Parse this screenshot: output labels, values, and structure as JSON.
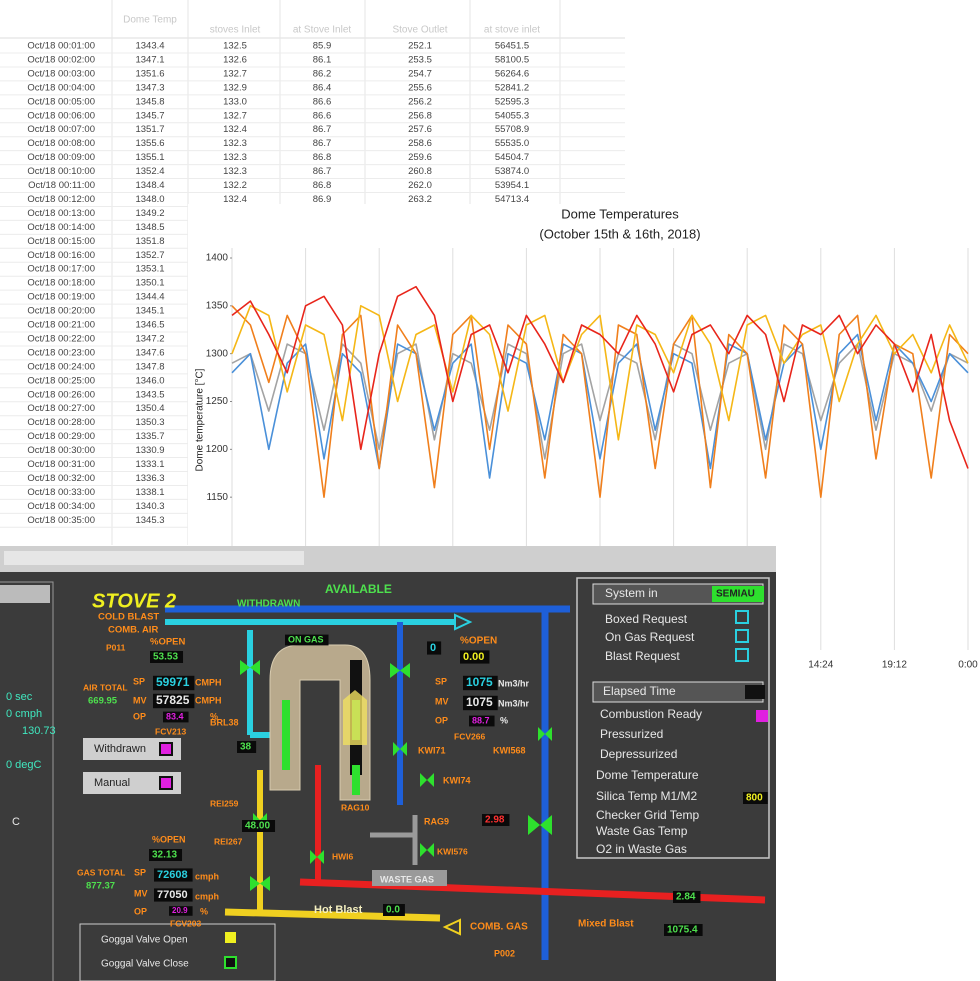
{
  "spreadsheet": {
    "headers": [
      "Dome Temp",
      "stoves Inlet",
      "at Stove Inlet",
      "Stove Outlet",
      "at stove inlet"
    ],
    "rows": [
      [
        "Oct/18 00:01:00",
        "1343.4",
        "132.5",
        "85.9",
        "252.1",
        "56451.5"
      ],
      [
        "Oct/18 00:02:00",
        "1347.1",
        "132.6",
        "86.1",
        "253.5",
        "58100.5"
      ],
      [
        "Oct/18 00:03:00",
        "1351.6",
        "132.7",
        "86.2",
        "254.7",
        "56264.6"
      ],
      [
        "Oct/18 00:04:00",
        "1347.3",
        "132.9",
        "86.4",
        "255.6",
        "52841.2"
      ],
      [
        "Oct/18 00:05:00",
        "1345.8",
        "133.0",
        "86.6",
        "256.2",
        "52595.3"
      ],
      [
        "Oct/18 00:06:00",
        "1345.7",
        "132.7",
        "86.6",
        "256.8",
        "54055.3"
      ],
      [
        "Oct/18 00:07:00",
        "1351.7",
        "132.4",
        "86.7",
        "257.6",
        "55708.9"
      ],
      [
        "Oct/18 00:08:00",
        "1355.6",
        "132.3",
        "86.7",
        "258.6",
        "55535.0"
      ],
      [
        "Oct/18 00:09:00",
        "1355.1",
        "132.3",
        "86.8",
        "259.6",
        "54504.7"
      ],
      [
        "Oct/18 00:10:00",
        "1352.4",
        "132.3",
        "86.7",
        "260.8",
        "53874.0"
      ],
      [
        "Oct/18 00:11:00",
        "1348.4",
        "132.2",
        "86.8",
        "262.0",
        "53954.1"
      ],
      [
        "Oct/18 00:12:00",
        "1348.0",
        "132.4",
        "86.9",
        "263.2",
        "54713.4"
      ],
      [
        "Oct/18 00:13:00",
        "1349.2"
      ],
      [
        "Oct/18 00:14:00",
        "1348.5"
      ],
      [
        "Oct/18 00:15:00",
        "1351.8"
      ],
      [
        "Oct/18 00:16:00",
        "1352.7"
      ],
      [
        "Oct/18 00:17:00",
        "1353.1"
      ],
      [
        "Oct/18 00:18:00",
        "1350.1"
      ],
      [
        "Oct/18 00:19:00",
        "1344.4"
      ],
      [
        "Oct/18 00:20:00",
        "1345.1"
      ],
      [
        "Oct/18 00:21:00",
        "1346.5"
      ],
      [
        "Oct/18 00:22:00",
        "1347.2"
      ],
      [
        "Oct/18 00:23:00",
        "1347.6"
      ],
      [
        "Oct/18 00:24:00",
        "1347.8"
      ],
      [
        "Oct/18 00:25:00",
        "1346.0"
      ],
      [
        "Oct/18 00:26:00",
        "1343.5"
      ],
      [
        "Oct/18 00:27:00",
        "1350.4"
      ],
      [
        "Oct/18 00:28:00",
        "1350.3"
      ],
      [
        "Oct/18 00:29:00",
        "1335.7"
      ],
      [
        "Oct/18 00:30:00",
        "1330.9"
      ],
      [
        "Oct/18 00:31:00",
        "1333.1"
      ],
      [
        "Oct/18 00:32:00",
        "1336.3"
      ],
      [
        "Oct/18 00:33:00",
        "1338.1"
      ],
      [
        "Oct/18 00:34:00",
        "1340.3"
      ],
      [
        "Oct/18 00:35:00",
        "1345.3"
      ]
    ]
  },
  "chart_data": {
    "type": "line",
    "title": "Dome Temperatures",
    "subtitle": "(October 15th & 16th, 2018)",
    "y_label": "Dome temperature [°C]",
    "categories": [
      null,
      null,
      null,
      null,
      null,
      null,
      null,
      null,
      null,
      null,
      null,
      null,
      null,
      null,
      null,
      null,
      null,
      null,
      null,
      null,
      null,
      null,
      null,
      null,
      null,
      null,
      null,
      null,
      null,
      null,
      null,
      null,
      "14:24",
      null,
      null,
      null,
      "19:12",
      null,
      null,
      null,
      "0:00"
    ],
    "ylim": [
      1100,
      1400
    ],
    "yticks": [
      1150,
      1200,
      1250,
      1300,
      1350,
      1400
    ],
    "grid": "x",
    "series": [
      {
        "color": "#a3a3a3",
        "values": [
          1290,
          1300,
          1240,
          1310,
          1300,
          1220,
          1310,
          1290,
          1200,
          1300,
          1310,
          1210,
          1300,
          1290,
          1220,
          1310,
          1300,
          1190,
          1300,
          1310,
          1230,
          1300,
          1290,
          1210,
          1310,
          1300,
          1220,
          1290,
          1300,
          1200,
          1310,
          1300,
          1230,
          1290,
          1310,
          1220,
          1300,
          1290,
          1240,
          1300,
          1290
        ]
      },
      {
        "color": "#4a90d9",
        "values": [
          1280,
          1300,
          1200,
          1290,
          1310,
          1190,
          1300,
          1280,
          1180,
          1310,
          1300,
          1220,
          1290,
          1310,
          1170,
          1300,
          1290,
          1210,
          1310,
          1300,
          1190,
          1290,
          1310,
          1220,
          1300,
          1290,
          1180,
          1310,
          1300,
          1210,
          1290,
          1310,
          1200,
          1300,
          1320,
          1230,
          1310,
          1290,
          1250,
          1300,
          1280
        ]
      },
      {
        "color": "#f07f1c",
        "values": [
          1350,
          1330,
          1270,
          1340,
          1300,
          1150,
          1320,
          1340,
          1180,
          1330,
          1300,
          1160,
          1320,
          1340,
          1200,
          1330,
          1310,
          1170,
          1320,
          1300,
          1150,
          1330,
          1320,
          1180,
          1310,
          1340,
          1160,
          1320,
          1300,
          1170,
          1330,
          1310,
          1150,
          1320,
          1340,
          1190,
          1310,
          1300,
          1170,
          1320,
          1300
        ]
      },
      {
        "color": "#f5b716",
        "values": [
          1300,
          1350,
          1340,
          1260,
          1330,
          1320,
          1230,
          1350,
          1340,
          1250,
          1320,
          1330,
          1260,
          1340,
          1320,
          1240,
          1330,
          1340,
          1270,
          1320,
          1340,
          1210,
          1330,
          1320,
          1280,
          1340,
          1310,
          1230,
          1330,
          1340,
          1290,
          1320,
          1330,
          1250,
          1310,
          1340,
          1300,
          1320,
          1280,
          1330,
          1290
        ]
      },
      {
        "color": "#e8251b",
        "values": [
          1340,
          1355,
          1320,
          1280,
          1350,
          1360,
          1330,
          1200,
          1300,
          1360,
          1370,
          1340,
          1250,
          1320,
          1330,
          1280,
          1340,
          1310,
          1270,
          1330,
          1320,
          1300,
          1340,
          1310,
          1260,
          1320,
          1330,
          1300,
          1340,
          1320,
          1250,
          1330,
          1320,
          1340,
          1300,
          1330,
          1310,
          1260,
          1320,
          1230,
          1180
        ]
      }
    ]
  },
  "scada": {
    "labels": [
      "STOVE 2",
      "AVAILABLE",
      "WITHDRAWN",
      "COLD BLAST",
      "COMB. AIR",
      "P011",
      "%OPEN",
      "53.53",
      "AIR TOTAL",
      "669.95",
      "SP",
      "59971",
      "CMPH",
      "MV",
      "57825",
      "CMPH",
      "OP",
      "83.4",
      "%",
      "FCV213",
      "BRL38",
      "38",
      "ON GAS",
      "0",
      "%OPEN",
      "0.00",
      "SP",
      "1075",
      "Nm3/hr",
      "MV",
      "1075",
      "Nm3/hr",
      "OP",
      "88.7",
      "%",
      "FCV266",
      "KWI71",
      "KWI568",
      "KWI74",
      "REI259",
      "REI267",
      "48.00",
      "RAG10",
      "RAG9",
      "2.98",
      "HWI6",
      "KWI576",
      "WASTE GAS",
      "%OPEN",
      "32.13",
      "GAS TOTAL",
      "877.37",
      "SP",
      "72608",
      "cmph",
      "MV",
      "77050",
      "cmph",
      "OP",
      "20.9",
      "%",
      "FCV203",
      "Hot Blast",
      "0.0",
      "COMB. GAS",
      "2.84",
      "Mixed Blast",
      "1075.4",
      "P002",
      "Goggal Valve Open",
      "Goggal Valve Close",
      "Withdrawn",
      "Manual",
      "System in",
      "SEMIAU",
      "Boxed Request",
      "On Gas Request",
      "Blast Request",
      "Elapsed Time",
      "Combustion Ready",
      "Pressurized",
      "Depressurized",
      "Dome Temperature",
      "Silica Temp M1/M2",
      "800",
      "Checker Grid Temp",
      "Waste Gas Temp",
      "O2 in Waste Gas",
      "0 sec",
      "0 cmph",
      "130.73",
      "0 degC",
      "C"
    ]
  }
}
